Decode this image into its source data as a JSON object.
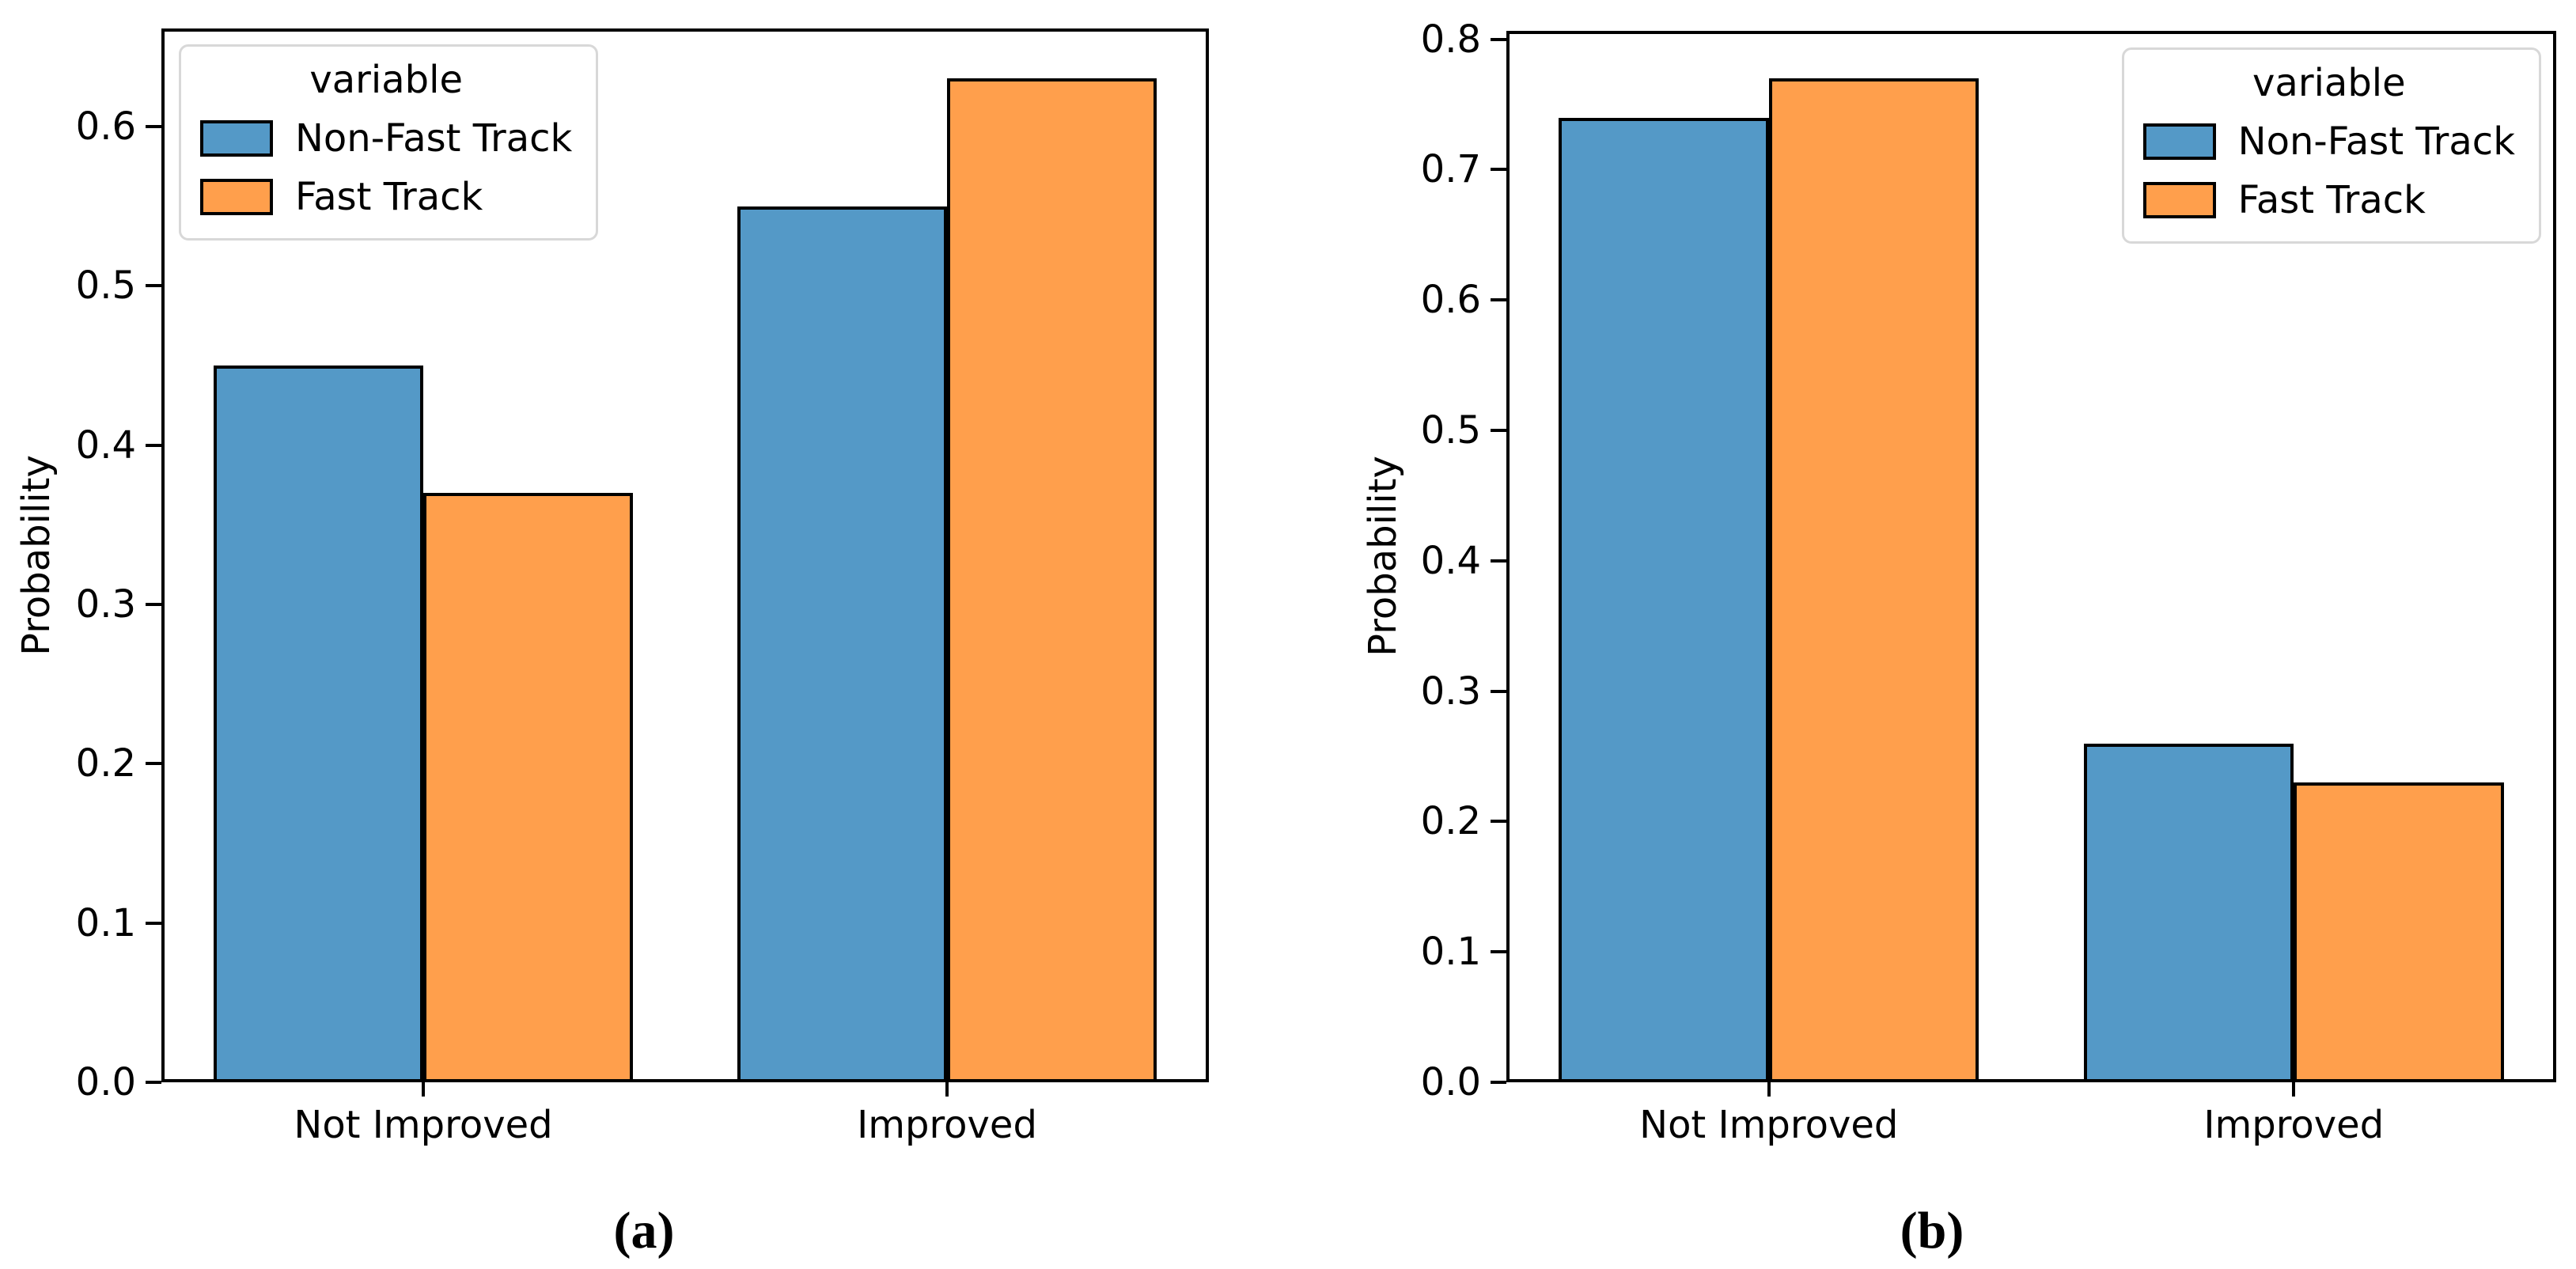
{
  "chart_data": [
    {
      "type": "bar",
      "panel": "a",
      "title": "",
      "caption": "(a)",
      "categories": [
        "Not Improved",
        "Improved"
      ],
      "series": [
        {
          "name": "Non-Fast Track",
          "color": "#5499C7",
          "values": [
            0.45,
            0.55
          ]
        },
        {
          "name": "Fast Track",
          "color": "#FF9F4C",
          "values": [
            0.37,
            0.63
          ]
        }
      ],
      "xlabel": "",
      "ylabel": "Probability",
      "ylim": [
        0,
        0.6615
      ],
      "yticks": [
        0.0,
        0.1,
        0.2,
        0.3,
        0.4,
        0.5,
        0.6
      ],
      "ytick_labels": [
        "0.0",
        "0.1",
        "0.2",
        "0.3",
        "0.4",
        "0.5",
        "0.6"
      ],
      "grid": false,
      "bar_edge_color": "#000000",
      "legend": {
        "title": "variable",
        "position": "upper-left"
      }
    },
    {
      "type": "bar",
      "panel": "b",
      "title": "",
      "caption": "(b)",
      "categories": [
        "Not Improved",
        "Improved"
      ],
      "series": [
        {
          "name": "Non-Fast Track",
          "color": "#5499C7",
          "values": [
            0.74,
            0.26
          ]
        },
        {
          "name": "Fast Track",
          "color": "#FF9F4C",
          "values": [
            0.77,
            0.23
          ]
        }
      ],
      "xlabel": "",
      "ylabel": "Probability",
      "ylim": [
        0,
        0.8065
      ],
      "yticks": [
        0.0,
        0.1,
        0.2,
        0.3,
        0.4,
        0.5,
        0.6,
        0.7,
        0.8
      ],
      "ytick_labels": [
        "0.0",
        "0.1",
        "0.2",
        "0.3",
        "0.4",
        "0.5",
        "0.6",
        "0.7",
        "0.8"
      ],
      "grid": false,
      "bar_edge_color": "#000000",
      "legend": {
        "title": "variable",
        "position": "upper-right"
      }
    }
  ]
}
